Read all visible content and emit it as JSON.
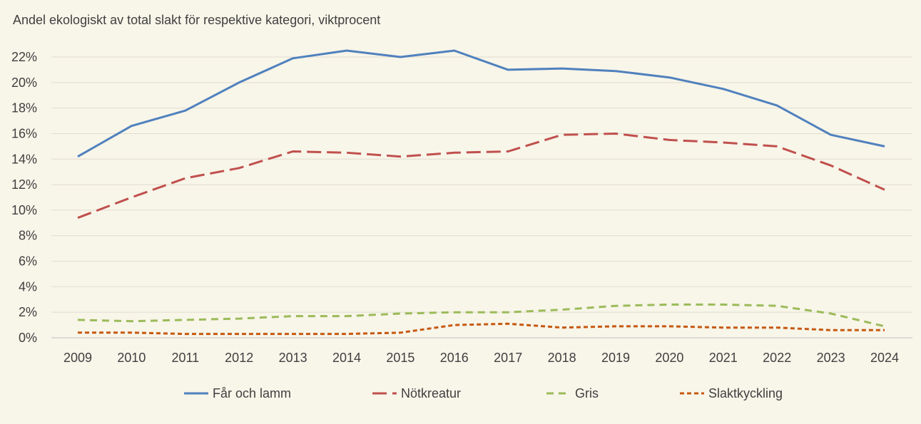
{
  "chart_data": {
    "type": "line",
    "title": "Andel ekologiskt av total slakt för respektive kategori, viktprocent",
    "xlabel": "",
    "ylabel": "",
    "x": [
      "2009",
      "2010",
      "2011",
      "2012",
      "2013",
      "2014",
      "2015",
      "2016",
      "2017",
      "2018",
      "2019",
      "2020",
      "2021",
      "2022",
      "2023",
      "2024"
    ],
    "ylim": [
      0,
      22
    ],
    "yticks": [
      "0%",
      "2%",
      "4%",
      "6%",
      "8%",
      "10%",
      "12%",
      "14%",
      "16%",
      "18%",
      "20%",
      "22%"
    ],
    "grid": "horizontal",
    "legend_position": "bottom",
    "series": [
      {
        "name": "Får och lamm",
        "color": "#4f81bd",
        "dash": "solid",
        "values": [
          14.2,
          16.6,
          17.8,
          20.0,
          21.9,
          22.5,
          22.0,
          22.5,
          21.0,
          21.1,
          20.9,
          20.4,
          19.5,
          18.2,
          15.9,
          15.0
        ]
      },
      {
        "name": "Nötkreatur",
        "color": "#c0504d",
        "dash": "long-dash",
        "values": [
          9.4,
          11.0,
          12.5,
          13.3,
          14.6,
          14.5,
          14.2,
          14.5,
          14.6,
          15.9,
          16.0,
          15.5,
          15.3,
          15.0,
          13.5,
          11.6
        ]
      },
      {
        "name": "Gris",
        "color": "#9bbb59",
        "dash": "dash",
        "values": [
          1.4,
          1.3,
          1.4,
          1.5,
          1.7,
          1.7,
          1.9,
          2.0,
          2.0,
          2.2,
          2.5,
          2.6,
          2.6,
          2.5,
          1.9,
          0.9
        ]
      },
      {
        "name": "Slaktkyckling",
        "color": "#c65911",
        "dash": "short-dash",
        "values": [
          0.4,
          0.4,
          0.3,
          0.3,
          0.3,
          0.3,
          0.4,
          1.0,
          1.1,
          0.8,
          0.9,
          0.9,
          0.8,
          0.8,
          0.6,
          0.6
        ]
      }
    ]
  }
}
